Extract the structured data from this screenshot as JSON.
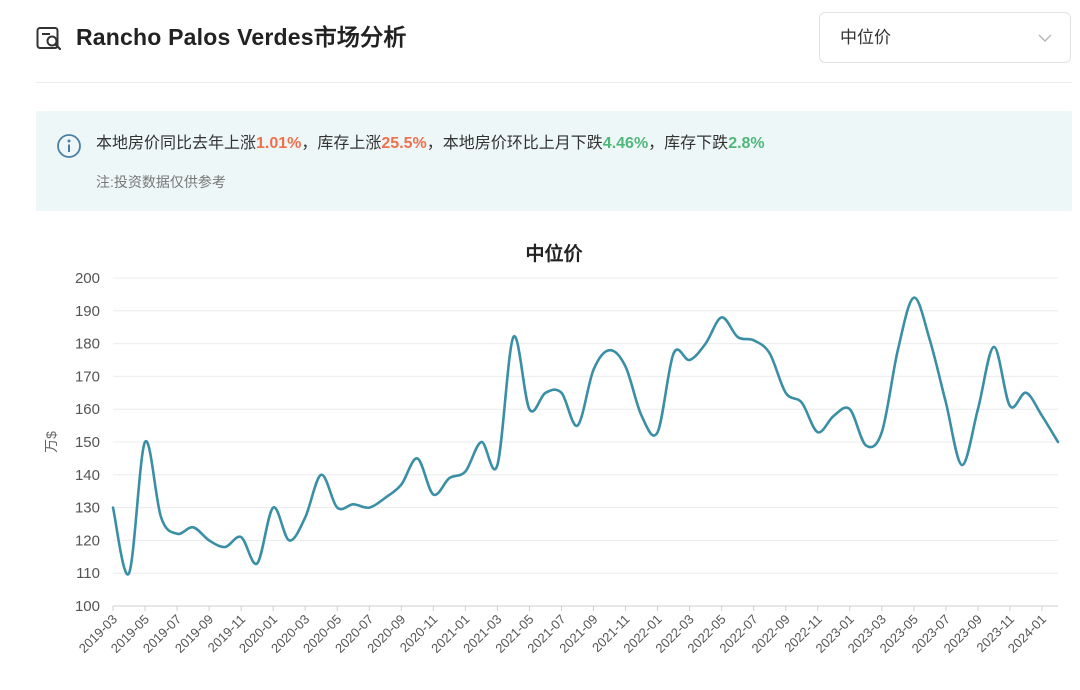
{
  "header": {
    "title": "Rancho Palos Verdes市场分析",
    "title_icon": "report-search-icon",
    "select": {
      "value": "中位价",
      "icon": "chevron-down-icon"
    }
  },
  "notice": {
    "icon": "info-circle-icon",
    "segments": [
      {
        "text": "本地房价同比去年上涨",
        "style": "normal"
      },
      {
        "text": "1.01%",
        "style": "red"
      },
      {
        "text": "，库存上涨",
        "style": "normal"
      },
      {
        "text": "25.5%",
        "style": "red"
      },
      {
        "text": "，本地房价环比上月下跌",
        "style": "normal"
      },
      {
        "text": "4.46%",
        "style": "green"
      },
      {
        "text": "，库存下跌",
        "style": "normal"
      },
      {
        "text": "2.8%",
        "style": "green"
      }
    ],
    "note": "注:投资数据仅供参考",
    "colors": {
      "up": "#f1704b",
      "down": "#4fb879"
    }
  },
  "chart_data": {
    "type": "line",
    "title": "中位价",
    "ylabel": "万$",
    "xlabel": "",
    "ylim": [
      100,
      200
    ],
    "yticks": [
      100,
      110,
      120,
      130,
      140,
      150,
      160,
      170,
      180,
      190,
      200
    ],
    "grid": true,
    "line_color": "#3a8fa6",
    "x": [
      "2019-03",
      "2019-04",
      "2019-05",
      "2019-06",
      "2019-07",
      "2019-08",
      "2019-09",
      "2019-10",
      "2019-11",
      "2019-12",
      "2020-01",
      "2020-02",
      "2020-03",
      "2020-04",
      "2020-05",
      "2020-06",
      "2020-07",
      "2020-08",
      "2020-09",
      "2020-10",
      "2020-11",
      "2020-12",
      "2021-01",
      "2021-02",
      "2021-03",
      "2021-04",
      "2021-05",
      "2021-06",
      "2021-07",
      "2021-08",
      "2021-09",
      "2021-10",
      "2021-11",
      "2021-12",
      "2022-01",
      "2022-02",
      "2022-03",
      "2022-04",
      "2022-05",
      "2022-06",
      "2022-07",
      "2022-08",
      "2022-09",
      "2022-10",
      "2022-11",
      "2022-12",
      "2023-01",
      "2023-02",
      "2023-03",
      "2023-04",
      "2023-05",
      "2023-06",
      "2023-07",
      "2023-08",
      "2023-09",
      "2023-10",
      "2023-11",
      "2023-12",
      "2024-01",
      "2024-02"
    ],
    "values": [
      130,
      110,
      150,
      127,
      122,
      124,
      120,
      118,
      121,
      113,
      130,
      120,
      127,
      140,
      130,
      131,
      130,
      133,
      137,
      145,
      134,
      139,
      141,
      150,
      143,
      182,
      160,
      165,
      165,
      155,
      172,
      178,
      173,
      158,
      153,
      177,
      175,
      180,
      188,
      182,
      181,
      177,
      165,
      162,
      153,
      158,
      160,
      149,
      153,
      178,
      194,
      181,
      162,
      143,
      160,
      179,
      161,
      165,
      158,
      150
    ],
    "x_tick_labels": [
      "2019-03",
      "2019-05",
      "2019-07",
      "2019-09",
      "2019-11",
      "2020-01",
      "2020-03",
      "2020-05",
      "2020-07",
      "2020-09",
      "2020-11",
      "2021-01",
      "2021-03",
      "2021-05",
      "2021-07",
      "2021-09",
      "2021-11",
      "2022-01",
      "2022-03",
      "2022-05",
      "2022-07",
      "2022-09",
      "2022-11",
      "2023-01",
      "2023-03",
      "2023-05",
      "2023-07",
      "2023-09",
      "2023-11",
      "2024-01"
    ]
  }
}
